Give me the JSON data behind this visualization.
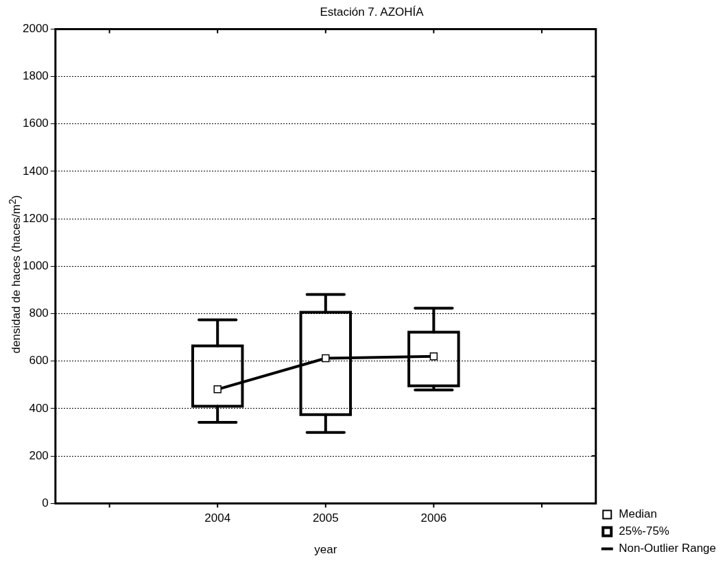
{
  "chart_data": {
    "type": "box",
    "title": "Estación 7. AZOHÍA",
    "xlabel": "year",
    "ylabel": "densidad de haces (haces/m$^{2}$)",
    "categories": [
      null,
      "2004",
      "2005",
      "2006",
      null
    ],
    "series": [
      {
        "name": "Median",
        "type": "line",
        "color": "#000000",
        "marker": "square",
        "values": [
          null,
          481,
          612,
          620,
          null
        ]
      },
      {
        "name": "25%-75%",
        "color": "#000000",
        "boxes": [
          null,
          {
            "low": 342,
            "q1": 410,
            "q3": 664,
            "high": 774
          },
          {
            "low": 299,
            "q1": 374,
            "q3": 806,
            "high": 881
          },
          {
            "low": 478,
            "q1": 496,
            "q3": 722,
            "high": 823
          },
          null
        ]
      }
    ],
    "ylim": [
      0,
      2000
    ],
    "yticks": [
      0,
      200,
      400,
      600,
      800,
      1000,
      1200,
      1400,
      1600,
      1800,
      2000
    ],
    "grid": "y",
    "legend": "bottom right",
    "annotations": [
      "Non-Outlier Range"
    ]
  }
}
